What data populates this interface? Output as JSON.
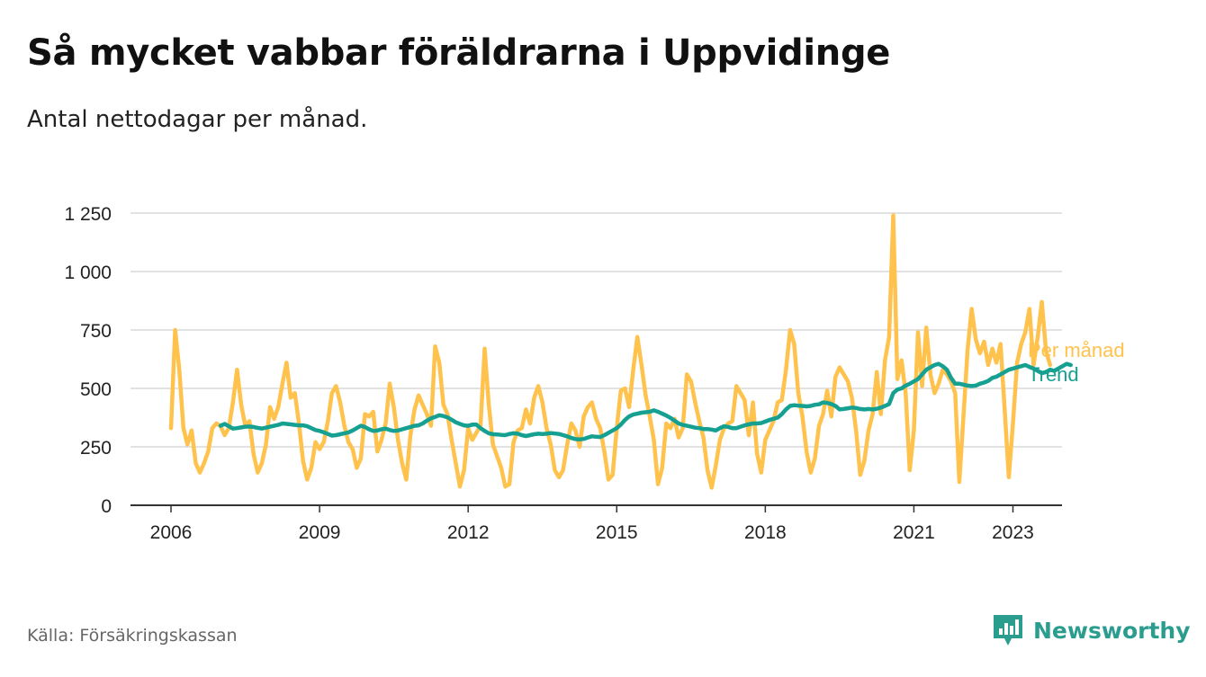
{
  "title": "Så mycket vabbar föräldrarna i Uppvidinge",
  "subtitle": "Antal nettodagar per månad.",
  "source": "Källa: Försäkringskassan",
  "brand": {
    "name": "Newsworthy",
    "icon": "newsworthy-logo-icon",
    "color": "#2a9d8f"
  },
  "colors": {
    "monthly": "#ffc24d",
    "trend": "#16a091",
    "grid": "#d9d9d9",
    "axis": "#333333"
  },
  "chart_data": {
    "type": "line",
    "title": "Så mycket vabbar föräldrarna i Uppvidinge",
    "ylabel": "",
    "xlabel": "",
    "ylim": [
      0,
      1250
    ],
    "xlim": [
      2005.5,
      2024.0
    ],
    "y_ticks": [
      0,
      250,
      500,
      750,
      1000,
      1250
    ],
    "y_tick_labels": [
      "0",
      "250",
      "500",
      "750",
      "1 000",
      "1 250"
    ],
    "x_ticks": [
      2006,
      2009,
      2012,
      2015,
      2018,
      2021,
      2023
    ],
    "x_tick_labels": [
      "2006",
      "2009",
      "2012",
      "2015",
      "2018",
      "2021",
      "2023"
    ],
    "grid": true,
    "legend": "end-labels",
    "series": [
      {
        "name": "Per månad",
        "x_start": 2006.0,
        "x_step": 0.0833333,
        "values": [
          330,
          750,
          580,
          330,
          260,
          320,
          180,
          140,
          180,
          230,
          330,
          350,
          340,
          300,
          330,
          440,
          580,
          430,
          340,
          360,
          220,
          140,
          180,
          260,
          420,
          370,
          420,
          520,
          610,
          460,
          480,
          350,
          190,
          110,
          160,
          270,
          240,
          270,
          360,
          480,
          510,
          440,
          340,
          270,
          240,
          160,
          200,
          390,
          380,
          400,
          230,
          280,
          350,
          520,
          420,
          280,
          180,
          110,
          300,
          410,
          470,
          430,
          390,
          340,
          680,
          610,
          430,
          390,
          280,
          180,
          80,
          150,
          330,
          280,
          310,
          340,
          670,
          430,
          260,
          210,
          160,
          80,
          90,
          270,
          320,
          330,
          410,
          350,
          460,
          510,
          440,
          330,
          260,
          150,
          120,
          150,
          260,
          350,
          320,
          250,
          380,
          420,
          440,
          370,
          330,
          230,
          110,
          130,
          330,
          490,
          500,
          420,
          580,
          720,
          600,
          470,
          380,
          280,
          90,
          160,
          350,
          330,
          370,
          290,
          330,
          560,
          530,
          440,
          360,
          290,
          150,
          75,
          170,
          280,
          330,
          350,
          360,
          510,
          480,
          450,
          300,
          440,
          220,
          140,
          280,
          320,
          360,
          440,
          450,
          580,
          750,
          690,
          480,
          380,
          230,
          140,
          200,
          340,
          390,
          490,
          380,
          550,
          590,
          560,
          530,
          460,
          320,
          130,
          190,
          320,
          390,
          570,
          390,
          620,
          720,
          1240,
          540,
          620,
          480,
          150,
          320,
          740,
          510,
          760,
          560,
          480,
          520,
          580,
          560,
          530,
          480,
          100,
          380,
          660,
          840,
          710,
          650,
          700,
          600,
          670,
          610,
          690,
          410,
          120,
          350,
          610,
          690,
          740,
          840,
          600,
          720,
          870,
          660,
          600
        ]
      },
      {
        "name": "Trend",
        "x_start": 2007.0,
        "x_step": 0.0833333,
        "values": [
          340,
          348,
          338,
          328,
          330,
          333,
          336,
          337,
          335,
          331,
          328,
          332,
          336,
          340,
          344,
          350,
          348,
          346,
          344,
          342,
          342,
          338,
          330,
          322,
          318,
          312,
          305,
          298,
          300,
          304,
          308,
          312,
          320,
          330,
          340,
          335,
          325,
          318,
          320,
          325,
          328,
          322,
          318,
          320,
          325,
          330,
          335,
          340,
          342,
          350,
          362,
          372,
          378,
          385,
          382,
          376,
          366,
          355,
          348,
          342,
          340,
          345,
          345,
          330,
          318,
          308,
          304,
          303,
          301,
          300,
          305,
          308,
          306,
          300,
          296,
          300,
          304,
          306,
          305,
          306,
          309,
          307,
          305,
          300,
          295,
          288,
          283,
          282,
          284,
          290,
          295,
          293,
          292,
          300,
          310,
          320,
          330,
          345,
          365,
          380,
          388,
          392,
          396,
          398,
          400,
          406,
          400,
          392,
          384,
          374,
          362,
          350,
          344,
          340,
          336,
          332,
          330,
          326,
          326,
          324,
          320,
          330,
          338,
          335,
          330,
          330,
          336,
          342,
          346,
          350,
          350,
          352,
          358,
          365,
          370,
          375,
          390,
          410,
          425,
          428,
          426,
          425,
          423,
          425,
          430,
          432,
          440,
          438,
          433,
          425,
          410,
          412,
          415,
          418,
          416,
          412,
          410,
          412,
          410,
          413,
          418,
          425,
          433,
          480,
          495,
          500,
          512,
          520,
          530,
          540,
          560,
          580,
          590,
          600,
          605,
          595,
          580,
          545,
          520,
          520,
          516,
          512,
          510,
          512,
          520,
          525,
          532,
          545,
          550,
          560,
          570,
          580,
          585,
          590,
          595,
          600,
          592,
          585,
          575,
          565,
          570,
          580,
          575,
          585,
          595,
          605,
          600
        ]
      }
    ]
  }
}
